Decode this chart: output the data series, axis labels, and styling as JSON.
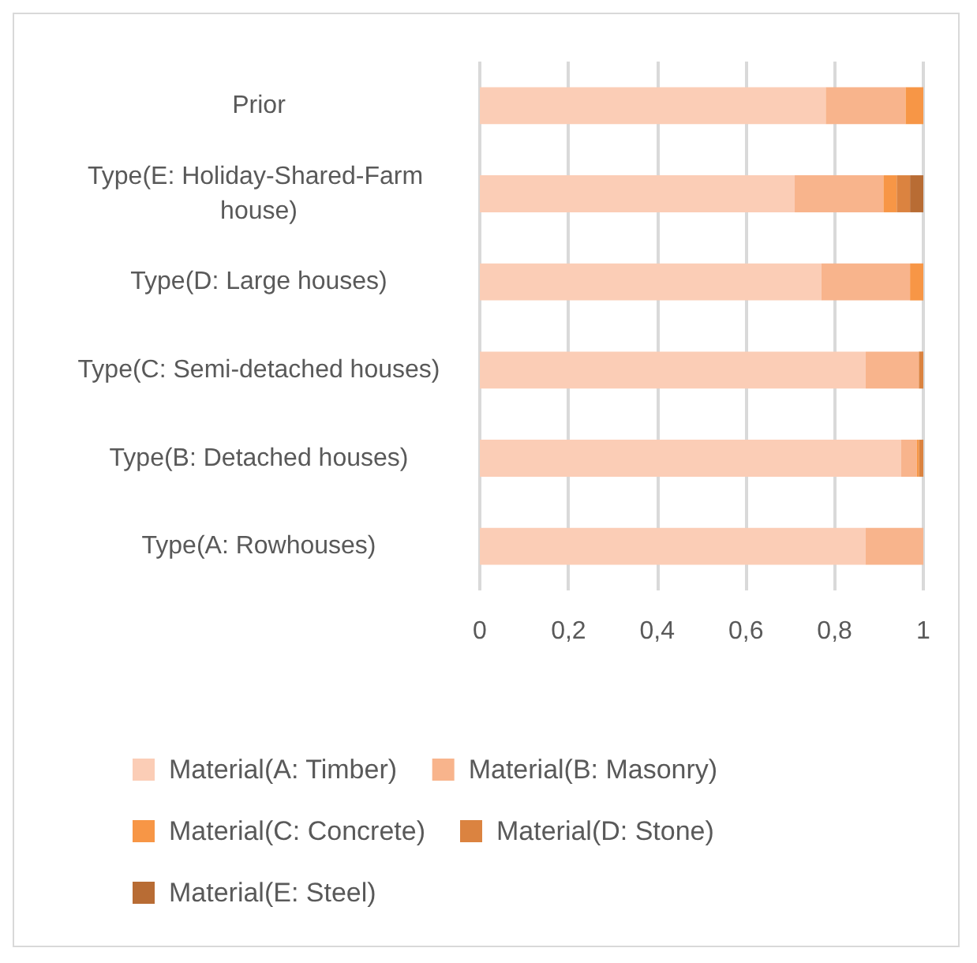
{
  "chart_data": {
    "type": "bar",
    "orientation": "horizontal",
    "stacked": true,
    "categories": [
      "Prior",
      "Type(E: Holiday-Shared-Farm house)",
      "Type(D: Large houses)",
      "Type(C: Semi-detached houses)",
      "Type(B: Detached houses)",
      "Type(A: Rowhouses)"
    ],
    "series": [
      {
        "name": "Material(A: Timber)",
        "color": "#fbcdb6",
        "values": [
          0.78,
          0.71,
          0.77,
          0.87,
          0.95,
          0.87
        ]
      },
      {
        "name": "Material(B: Masonry)",
        "color": "#f8b48c",
        "values": [
          0.18,
          0.2,
          0.2,
          0.12,
          0.035,
          0.13
        ]
      },
      {
        "name": "Material(C: Concrete)",
        "color": "#f79646",
        "values": [
          0.04,
          0.03,
          0.03,
          0,
          0.005,
          0
        ]
      },
      {
        "name": "Material(D: Stone)",
        "color": "#db8340",
        "values": [
          0,
          0.03,
          0,
          0.01,
          0.01,
          0
        ]
      },
      {
        "name": "Material(E: Steel)",
        "color": "#b86c34",
        "values": [
          0,
          0.03,
          0,
          0,
          0,
          0
        ]
      }
    ],
    "xlim": [
      0,
      1
    ],
    "xticks": [
      0,
      {
        "value": 0.2,
        "label": "0,2"
      },
      {
        "value": 0.4,
        "label": "0,4"
      },
      {
        "value": 0.6,
        "label": "0,6"
      },
      {
        "value": 0.8,
        "label": "0,8"
      },
      1
    ],
    "grid": "x",
    "legend": "bottom"
  }
}
